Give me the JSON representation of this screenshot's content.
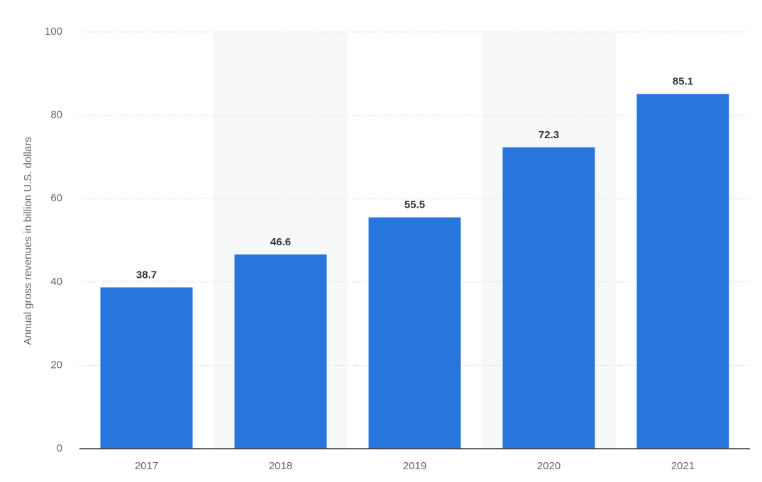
{
  "chart_data": {
    "type": "bar",
    "y_label": "Annual gross revenues in billion U.S. dollars",
    "categories": [
      "2017",
      "2018",
      "2019",
      "2020",
      "2021"
    ],
    "values": [
      38.7,
      46.6,
      55.5,
      72.3,
      85.1
    ],
    "color": "#2876dd",
    "ylim": [
      0,
      100
    ],
    "yticks": [
      0,
      20,
      40,
      60,
      80,
      100
    ],
    "grid": true
  }
}
